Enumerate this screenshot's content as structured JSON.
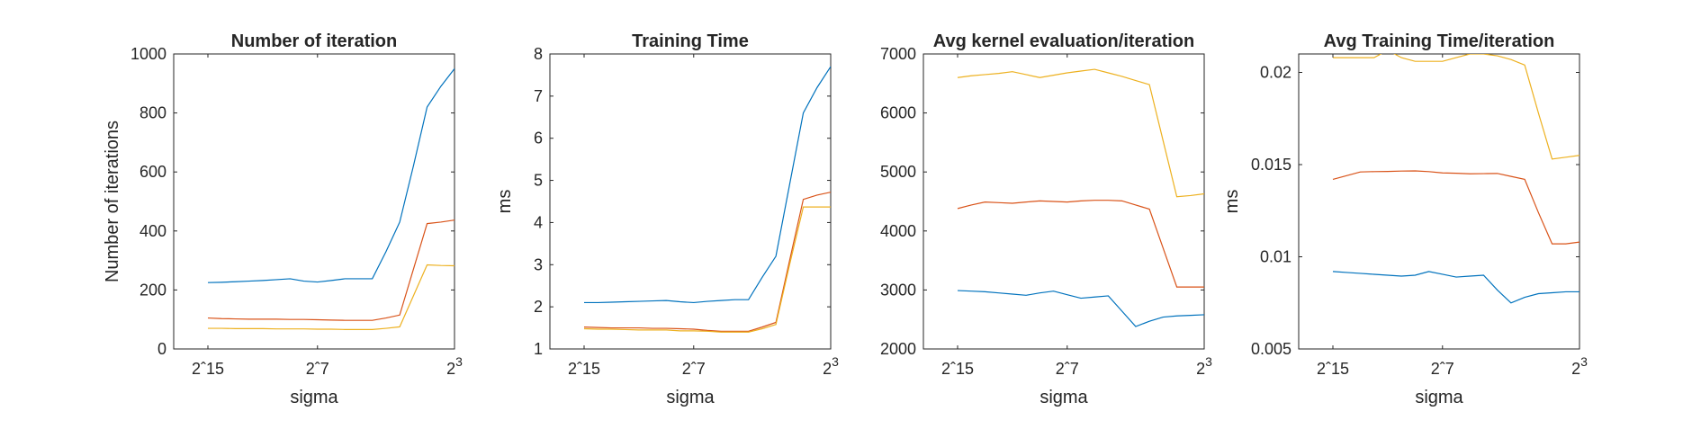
{
  "colors": {
    "series": [
      "#0072BD",
      "#D95319",
      "#EDB120"
    ],
    "axis": "#262626",
    "background": "#ffffff"
  },
  "chart_data": [
    {
      "type": "line",
      "title": "Number of iteration",
      "xlabel": "sigma",
      "ylabel": "Number of iterations",
      "x_exponents": [
        -15,
        -14,
        -13,
        -12,
        -11,
        -10,
        -9,
        -8,
        -7,
        -6,
        -5,
        -4,
        -3,
        -2,
        -1,
        0,
        1,
        2,
        3
      ],
      "x_ticks": [
        {
          "exp": -15,
          "label": "2ˆ15"
        },
        {
          "exp": -7,
          "label": "2ˆ7"
        },
        {
          "exp": 3,
          "label": "2",
          "sup": "3"
        }
      ],
      "ylim": [
        0,
        1000
      ],
      "y_ticks": [
        "0",
        "200",
        "400",
        "600",
        "800",
        "1000"
      ],
      "grid": false,
      "series": [
        {
          "values": [
            225,
            226,
            228,
            230,
            232,
            235,
            238,
            230,
            227,
            232,
            238,
            238,
            238,
            330,
            430,
            620,
            820,
            890,
            950
          ]
        },
        {
          "values": [
            105,
            103,
            102,
            101,
            101,
            101,
            100,
            100,
            99,
            98,
            97,
            97,
            97,
            105,
            115,
            270,
            425,
            430,
            437
          ]
        },
        {
          "values": [
            70,
            70,
            69,
            69,
            69,
            68,
            68,
            68,
            67,
            67,
            66,
            66,
            66,
            70,
            75,
            180,
            285,
            283,
            282
          ]
        }
      ]
    },
    {
      "type": "line",
      "title": "Training Time",
      "xlabel": "sigma",
      "ylabel": "ms",
      "x_exponents": [
        -15,
        -14,
        -13,
        -12,
        -11,
        -10,
        -9,
        -8,
        -7,
        -6,
        -5,
        -4,
        -3,
        -2,
        -1,
        0,
        1,
        2,
        3
      ],
      "x_ticks": [
        {
          "exp": -15,
          "label": "2ˆ15"
        },
        {
          "exp": -7,
          "label": "2ˆ7"
        },
        {
          "exp": 3,
          "label": "2",
          "sup": "3"
        }
      ],
      "ylim": [
        1,
        8
      ],
      "y_ticks": [
        "1",
        "2",
        "3",
        "4",
        "5",
        "6",
        "7",
        "8"
      ],
      "grid": false,
      "series": [
        {
          "values": [
            2.1,
            2.1,
            2.11,
            2.12,
            2.13,
            2.14,
            2.15,
            2.12,
            2.1,
            2.13,
            2.15,
            2.17,
            2.17,
            2.7,
            3.2,
            4.9,
            6.6,
            7.2,
            7.7
          ]
        },
        {
          "values": [
            1.52,
            1.51,
            1.5,
            1.5,
            1.5,
            1.49,
            1.49,
            1.48,
            1.47,
            1.44,
            1.42,
            1.42,
            1.42,
            1.52,
            1.63,
            3.1,
            4.55,
            4.65,
            4.72
          ]
        },
        {
          "values": [
            1.48,
            1.47,
            1.47,
            1.46,
            1.45,
            1.45,
            1.45,
            1.43,
            1.43,
            1.42,
            1.4,
            1.4,
            1.4,
            1.48,
            1.58,
            3.0,
            4.37,
            4.37,
            4.37
          ]
        }
      ]
    },
    {
      "type": "line",
      "title": "Avg kernel evaluation/iteration",
      "xlabel": "sigma",
      "ylabel": "",
      "x_exponents": [
        -15,
        -14,
        -13,
        -12,
        -11,
        -10,
        -9,
        -8,
        -7,
        -6,
        -5,
        -4,
        -3,
        -2,
        -1,
        0,
        1,
        2,
        3
      ],
      "x_ticks": [
        {
          "exp": -15,
          "label": "2ˆ15"
        },
        {
          "exp": -7,
          "label": "2ˆ7"
        },
        {
          "exp": 3,
          "label": "2",
          "sup": "3"
        }
      ],
      "ylim": [
        2000,
        7000
      ],
      "y_ticks": [
        "2000",
        "3000",
        "4000",
        "5000",
        "6000",
        "7000"
      ],
      "grid": false,
      "series": [
        {
          "values": [
            2990,
            2980,
            2970,
            2950,
            2930,
            2910,
            2950,
            2980,
            2920,
            2860,
            2880,
            2900,
            2640,
            2380,
            2470,
            2540,
            2560,
            2570,
            2580
          ]
        },
        {
          "values": [
            4380,
            4440,
            4490,
            4480,
            4470,
            4490,
            4510,
            4500,
            4490,
            4510,
            4520,
            4520,
            4510,
            4440,
            4370,
            3710,
            3050,
            3050,
            3050
          ]
        },
        {
          "values": [
            6600,
            6630,
            6650,
            6670,
            6700,
            6650,
            6600,
            6640,
            6680,
            6710,
            6740,
            6680,
            6620,
            6550,
            6480,
            5530,
            4580,
            4600,
            4630
          ]
        }
      ]
    },
    {
      "type": "line",
      "title": "Avg Training Time/iteration",
      "xlabel": "sigma",
      "ylabel": "ms",
      "x_exponents": [
        -15,
        -14,
        -13,
        -12,
        -11,
        -10,
        -9,
        -8,
        -7,
        -6,
        -5,
        -4,
        -3,
        -2,
        -1,
        0,
        1,
        2,
        3
      ],
      "x_ticks": [
        {
          "exp": -15,
          "label": "2ˆ15"
        },
        {
          "exp": -7,
          "label": "2ˆ7"
        },
        {
          "exp": 3,
          "label": "2",
          "sup": "3"
        }
      ],
      "ylim": [
        0.005,
        0.021
      ],
      "y_ticks": [
        "0.005",
        "0.01",
        "0.015",
        "0.02"
      ],
      "y_tick_values": [
        0.005,
        0.01,
        0.015,
        0.02
      ],
      "grid": false,
      "series": [
        {
          "values": [
            0.0092,
            0.00915,
            0.0091,
            0.00905,
            0.009,
            0.00895,
            0.009,
            0.0092,
            0.00905,
            0.0089,
            0.00895,
            0.009,
            0.0082,
            0.0075,
            0.0078,
            0.008,
            0.00805,
            0.0081,
            0.0081
          ]
        },
        {
          "values": [
            0.0142,
            0.0144,
            0.0146,
            0.01462,
            0.01463,
            0.01465,
            0.01466,
            0.01462,
            0.01455,
            0.01453,
            0.0145,
            0.01451,
            0.01452,
            0.01436,
            0.0142,
            0.0124,
            0.0107,
            0.0107,
            0.0108
          ]
        },
        {
          "values": [
            0.0208,
            0.0208,
            0.0208,
            0.0208,
            0.0212,
            0.0208,
            0.0206,
            0.0206,
            0.0206,
            0.0208,
            0.021,
            0.021,
            0.0209,
            0.0207,
            0.0204,
            0.0178,
            0.0153,
            0.0154,
            0.0155
          ]
        }
      ]
    }
  ]
}
